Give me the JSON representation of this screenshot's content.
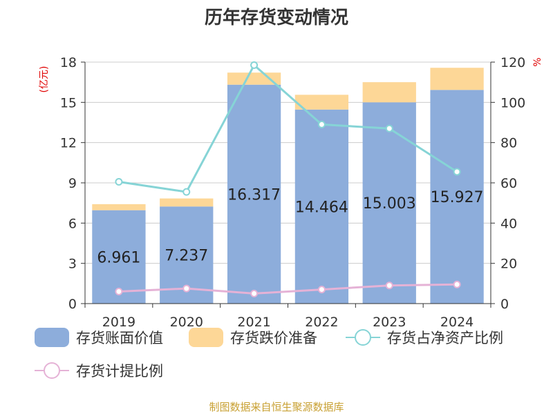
{
  "chart_data": {
    "type": "bar",
    "title": "历年存货变动情况",
    "categories": [
      "2019",
      "2020",
      "2021",
      "2022",
      "2023",
      "2024"
    ],
    "y_left": {
      "unit": "(亿元)",
      "ylim": [
        0,
        18
      ],
      "ticks": [
        0,
        3,
        6,
        9,
        12,
        15,
        18
      ]
    },
    "y_right": {
      "unit": "%",
      "ylim": [
        0,
        120
      ],
      "ticks": [
        0,
        20,
        40,
        60,
        80,
        100,
        120
      ]
    },
    "series": [
      {
        "name": "存货账面价值",
        "type": "bar",
        "stack": "inventory",
        "axis": "left",
        "color": "#8daddb",
        "values": [
          6.961,
          7.237,
          16.317,
          14.464,
          15.003,
          15.927
        ],
        "show_labels": true
      },
      {
        "name": "存货跌价准备",
        "type": "bar",
        "stack": "inventory",
        "axis": "left",
        "color": "#fdd797",
        "values": [
          0.45,
          0.6,
          0.9,
          1.1,
          1.5,
          1.65
        ]
      },
      {
        "name": "存货占净资产比例",
        "type": "line",
        "axis": "right",
        "color": "#86d4d6",
        "values": [
          60.5,
          55.5,
          118.5,
          89,
          87,
          65.5
        ]
      },
      {
        "name": "存货计提比例",
        "type": "line",
        "axis": "right",
        "color": "#e5b2d6",
        "values": [
          6,
          7.5,
          5,
          7,
          9,
          9.5
        ]
      }
    ],
    "grid": true,
    "legend_position": "bottom"
  },
  "footer": "制图数据来自恒生聚源数据库"
}
